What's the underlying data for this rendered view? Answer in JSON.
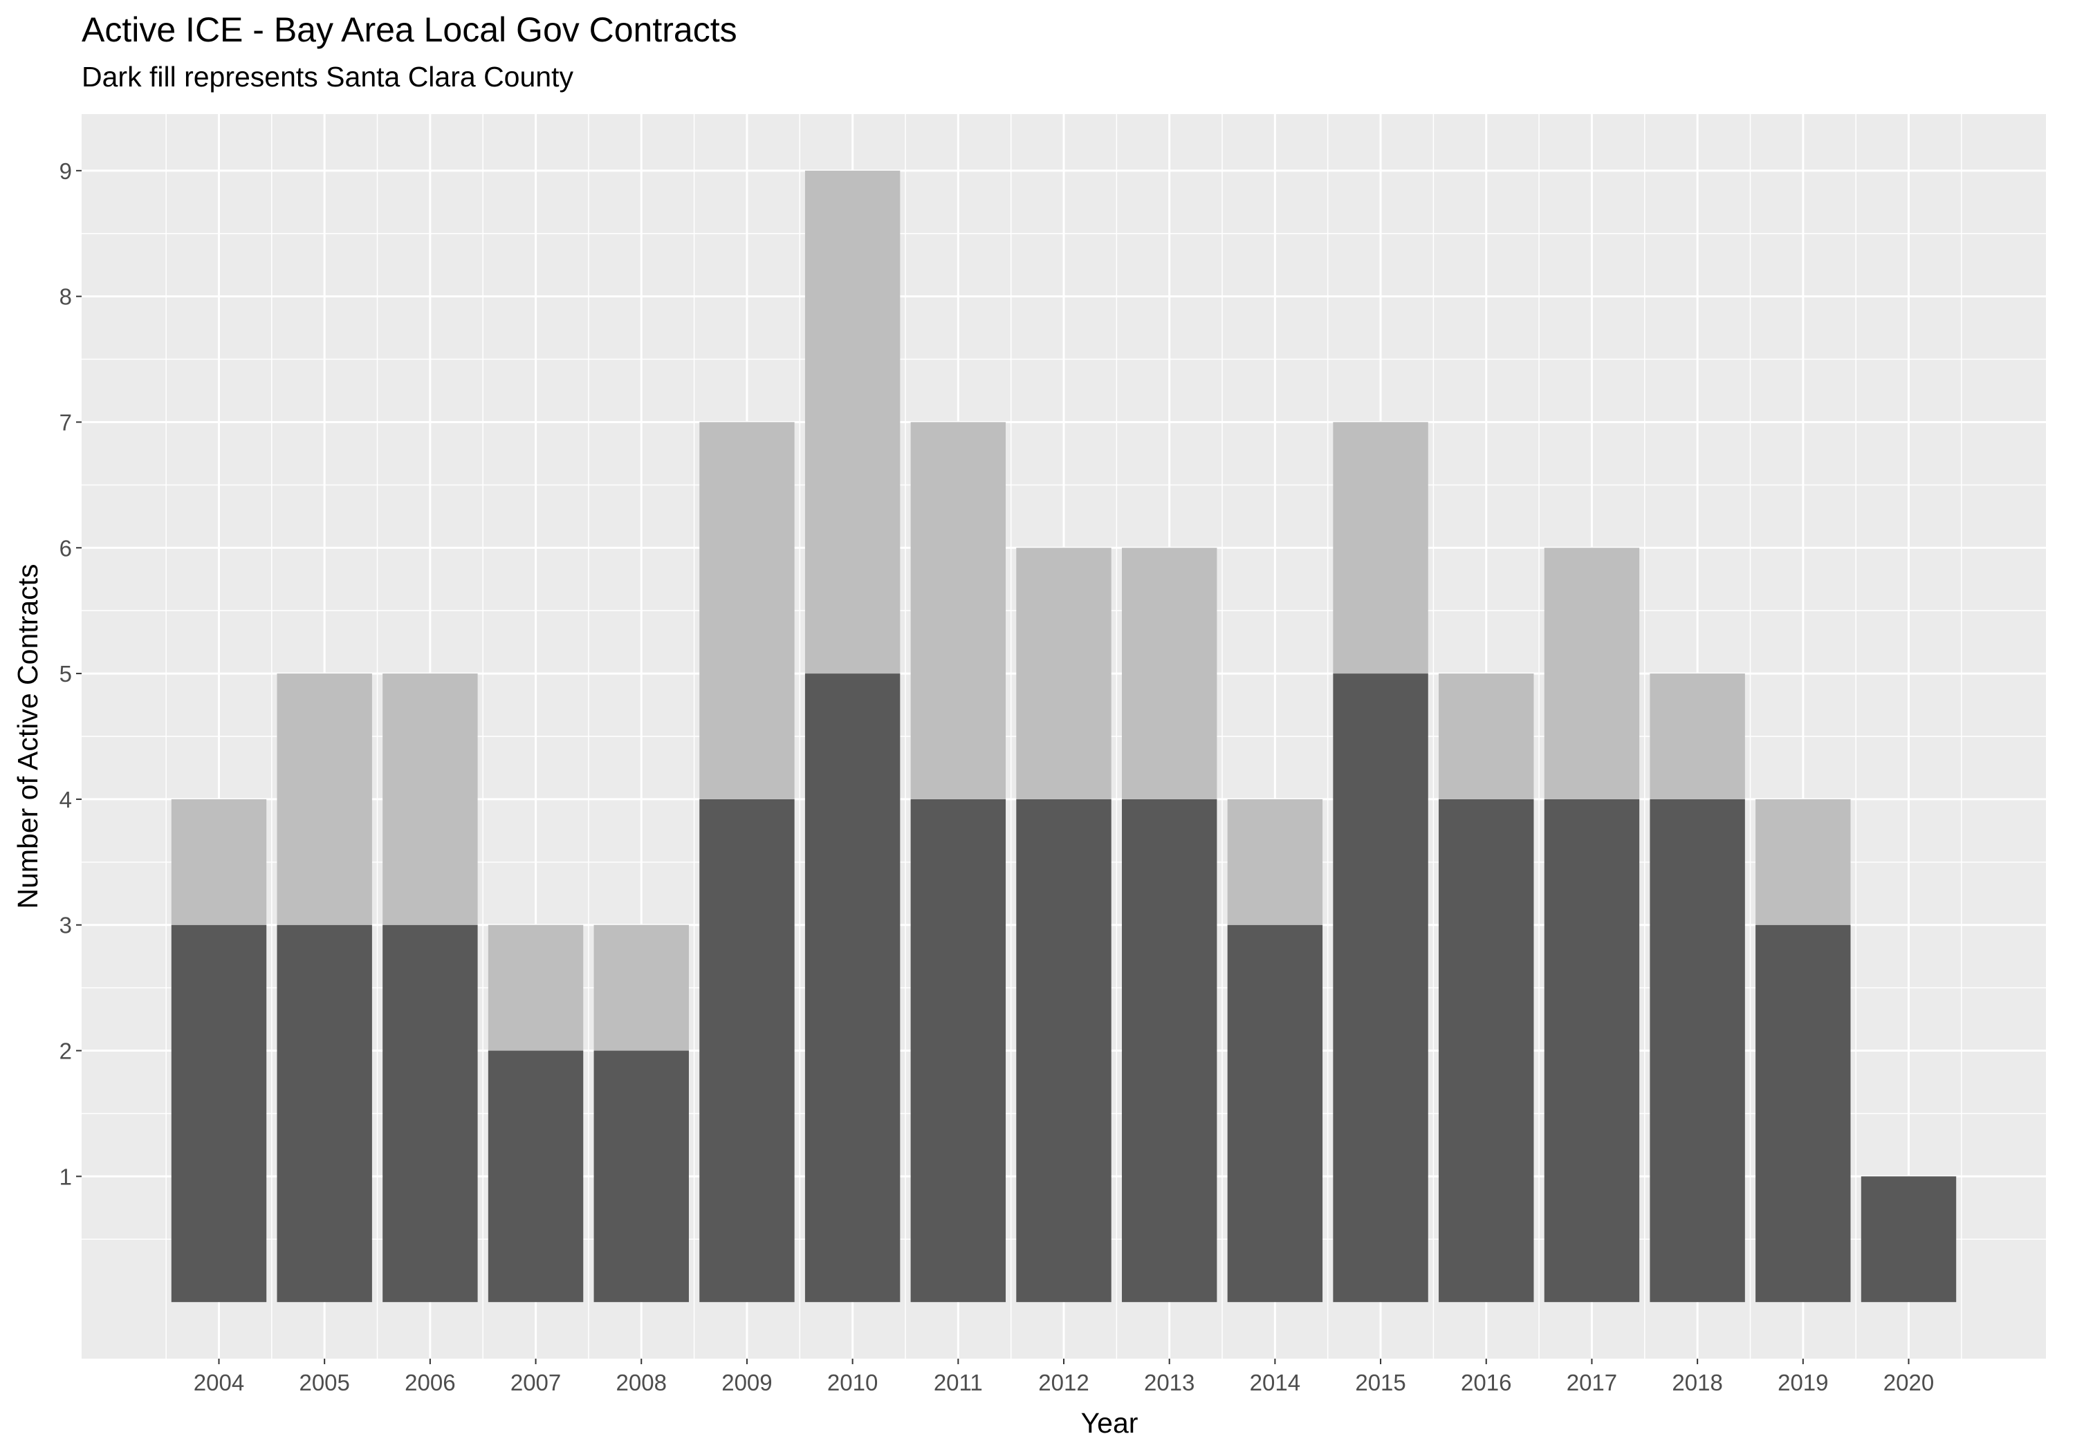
{
  "chart_data": {
    "type": "bar",
    "stacked": true,
    "title": "Active ICE - Bay Area Local Gov Contracts",
    "subtitle": "Dark fill represents Santa Clara County",
    "xlabel": "Year",
    "ylabel": "Number of Active Contracts",
    "categories": [
      "2004",
      "2005",
      "2006",
      "2007",
      "2008",
      "2009",
      "2010",
      "2011",
      "2012",
      "2013",
      "2014",
      "2015",
      "2016",
      "2017",
      "2018",
      "2019",
      "2020"
    ],
    "series": [
      {
        "values": [
          3,
          3,
          3,
          2,
          2,
          4,
          5,
          4,
          4,
          4,
          3,
          5,
          4,
          4,
          4,
          3,
          1
        ],
        "color": "#595959"
      },
      {
        "values": [
          1,
          2,
          2,
          1,
          1,
          3,
          4,
          3,
          2,
          2,
          1,
          2,
          1,
          2,
          1,
          1,
          0
        ],
        "color": "#bebebe"
      }
    ],
    "totals": [
      4,
      5,
      5,
      3,
      3,
      7,
      9,
      7,
      6,
      6,
      4,
      7,
      5,
      6,
      5,
      4,
      1
    ],
    "yticks": [
      1,
      2,
      3,
      4,
      5,
      6,
      7,
      8,
      9
    ],
    "ylim": [
      -0.45,
      9.45
    ],
    "grid": true,
    "panel_background": "#ebebeb",
    "legend": "none"
  }
}
